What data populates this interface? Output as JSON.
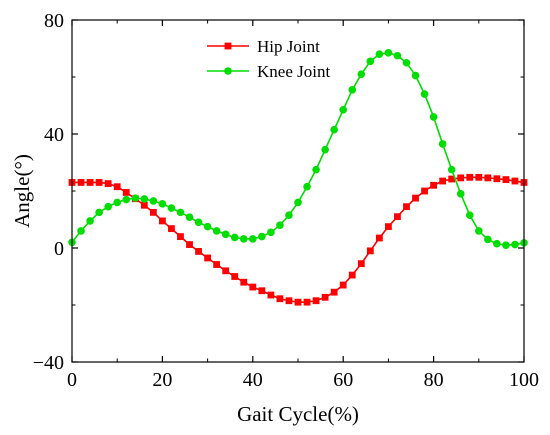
{
  "chart_data": {
    "type": "line",
    "xlabel": "Gait Cycle(%)",
    "ylabel": "Angle(°)",
    "xlim": [
      0,
      100
    ],
    "ylim": [
      -40,
      80
    ],
    "xticks": [
      0,
      20,
      40,
      60,
      80,
      100
    ],
    "yticks": [
      -40,
      0,
      40,
      80
    ],
    "grid": false,
    "legend_position": "top-center",
    "x": [
      0,
      2,
      4,
      6,
      8,
      10,
      12,
      14,
      16,
      18,
      20,
      22,
      24,
      26,
      28,
      30,
      32,
      34,
      36,
      38,
      40,
      42,
      44,
      46,
      48,
      50,
      52,
      54,
      56,
      58,
      60,
      62,
      64,
      66,
      68,
      70,
      72,
      74,
      76,
      78,
      80,
      82,
      84,
      86,
      88,
      90,
      92,
      94,
      96,
      98,
      100
    ],
    "series": [
      {
        "name": "Hip Joint",
        "color": "#ff0000",
        "marker": "square",
        "values": [
          23,
          23,
          23,
          23,
          22.6,
          21.5,
          19.5,
          17.3,
          15,
          12.5,
          9.5,
          6.8,
          4,
          1.2,
          -1.2,
          -3.5,
          -5.8,
          -8,
          -10,
          -12,
          -13.7,
          -15,
          -16.5,
          -17.8,
          -18.5,
          -19,
          -19,
          -18.5,
          -17.3,
          -15.5,
          -13,
          -9.5,
          -5.5,
          -1,
          3.5,
          7.5,
          11,
          14.5,
          17.5,
          20,
          22,
          23.5,
          24.2,
          24.6,
          24.8,
          24.8,
          24.6,
          24.3,
          24,
          23.5,
          23
        ]
      },
      {
        "name": "Knee Joint",
        "color": "#00dd00",
        "marker": "circle",
        "values": [
          2,
          6,
          9.5,
          12.5,
          14.5,
          16,
          17,
          17.5,
          17.2,
          16.5,
          15.5,
          14,
          12.5,
          10.8,
          9,
          7.5,
          6,
          4.8,
          3.7,
          3.2,
          3.2,
          4,
          5.5,
          8,
          11.5,
          16,
          21.5,
          27.5,
          34.5,
          41.5,
          48.5,
          55.5,
          61,
          65.5,
          68,
          68.5,
          67.5,
          65,
          60.5,
          54,
          46,
          36.5,
          27.5,
          19,
          11.5,
          6,
          3,
          1.5,
          1,
          1.2,
          1.8
        ]
      }
    ]
  }
}
